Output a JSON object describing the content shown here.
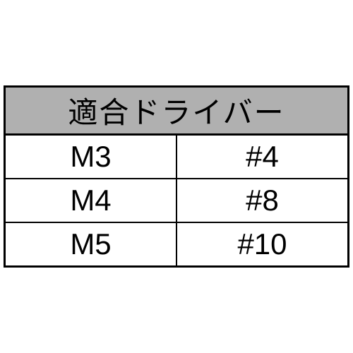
{
  "table": {
    "header": "適合ドライバー",
    "columns": [
      "size",
      "driver"
    ],
    "rows": [
      {
        "size": "M3",
        "driver": "#4"
      },
      {
        "size": "M4",
        "driver": "#8"
      },
      {
        "size": "M5",
        "driver": "#10"
      }
    ],
    "header_bg_color": "#b0b0b0",
    "border_color": "#000000",
    "font_size": 42,
    "outer_border_width": 3,
    "inner_border_width": 2
  }
}
